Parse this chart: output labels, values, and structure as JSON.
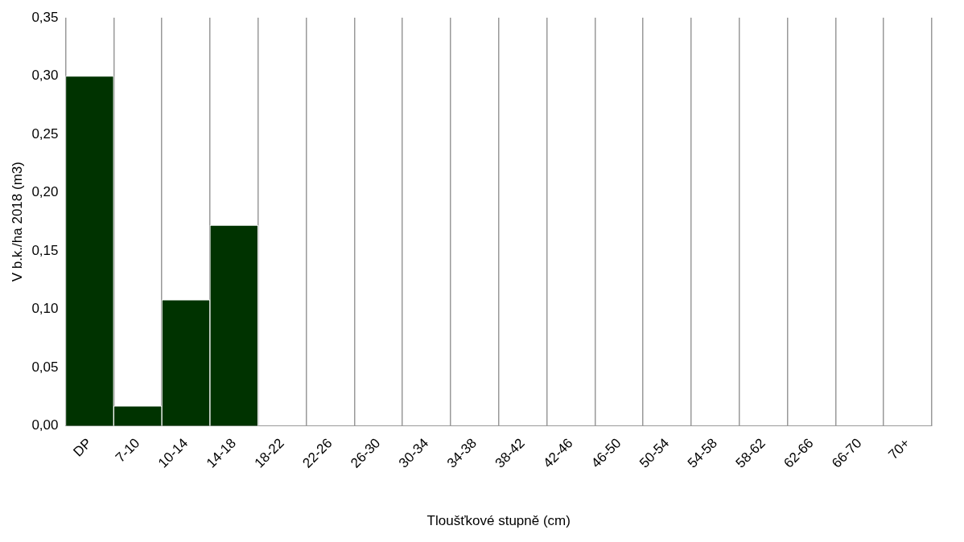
{
  "chart_data": {
    "type": "bar",
    "xlabel": "Tloušťkové stupně (cm)",
    "ylabel": "V b.k./ha 2018 (m3)",
    "categories": [
      "DP",
      "7-10",
      "10-14",
      "14-18",
      "18-22",
      "22-26",
      "26-30",
      "30-34",
      "34-38",
      "38-42",
      "42-46",
      "46-50",
      "50-54",
      "54-58",
      "58-62",
      "62-66",
      "66-70",
      "70+"
    ],
    "values": [
      0.3,
      0.017,
      0.108,
      0.172,
      0,
      0,
      0,
      0,
      0,
      0,
      0,
      0,
      0,
      0,
      0,
      0,
      0,
      0
    ],
    "color": "#003300",
    "ylim": [
      0,
      0.35
    ],
    "yticks": [
      {
        "value": 0,
        "label": "0,00"
      },
      {
        "value": 0.05,
        "label": "0,05"
      },
      {
        "value": 0.1,
        "label": "0,10"
      },
      {
        "value": 0.15,
        "label": "0,15"
      },
      {
        "value": 0.2,
        "label": "0,20"
      },
      {
        "value": 0.25,
        "label": "0,25"
      },
      {
        "value": 0.3,
        "label": "0,30"
      },
      {
        "value": 0.35,
        "label": "0,35"
      }
    ],
    "grid": "x",
    "legend": false
  }
}
